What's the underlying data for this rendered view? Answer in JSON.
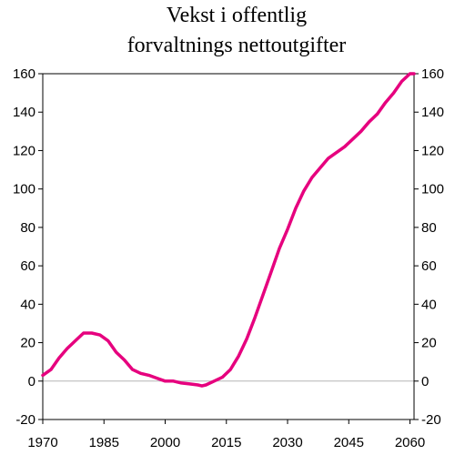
{
  "chart_data": {
    "type": "line",
    "title_lines": [
      "Vekst i offentlig",
      "forvaltnings nettoutgifter"
    ],
    "xlabel": "",
    "ylabel": "",
    "xlim": [
      1970,
      2061
    ],
    "ylim": [
      -20,
      160
    ],
    "x_ticks": [
      "1970",
      "1985",
      "2000",
      "2015",
      "2030",
      "2045",
      "2060"
    ],
    "y_ticks": [
      "160",
      "140",
      "120",
      "100",
      "80",
      "60",
      "40",
      "20",
      "0",
      "-20"
    ],
    "grid": false,
    "zero_line": true,
    "line_color": "#e6007e",
    "series": [
      {
        "x": [
          1970,
          1972,
          1974,
          1976,
          1978,
          1980,
          1982,
          1984,
          1986,
          1988,
          1990,
          1992,
          1994,
          1996,
          1998,
          2000,
          2002,
          2004,
          2006,
          2008,
          2009,
          2010,
          2012,
          2014,
          2016,
          2018,
          2020,
          2022,
          2024,
          2026,
          2028,
          2030,
          2032,
          2034,
          2036,
          2038,
          2040,
          2042,
          2044,
          2046,
          2048,
          2050,
          2052,
          2054,
          2056,
          2058,
          2060,
          2061
        ],
        "y": [
          3,
          6,
          12,
          17,
          21,
          25,
          25,
          24,
          21,
          15,
          11,
          6,
          4,
          3,
          1.5,
          0,
          0,
          -1,
          -1.5,
          -2,
          -2.5,
          -2,
          0,
          2,
          6,
          13,
          22,
          33,
          45,
          57,
          69,
          79,
          90,
          99,
          106,
          111,
          116,
          119,
          122,
          126,
          130,
          135,
          139,
          145,
          150,
          156,
          160,
          160
        ]
      }
    ]
  }
}
